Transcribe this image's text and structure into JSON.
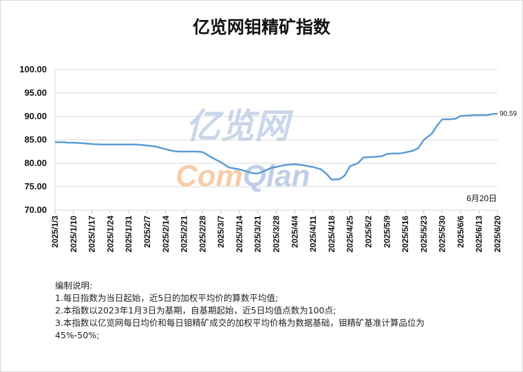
{
  "chart_data": {
    "type": "line",
    "title": "亿览网钼精矿指数",
    "ylim": [
      70,
      100
    ],
    "yticks": [
      "70.00",
      "75.00",
      "80.00",
      "85.00",
      "90.00",
      "95.00",
      "100.00"
    ],
    "x_tick_labels": [
      "2025/1/3",
      "2025/1/10",
      "2025/1/17",
      "2025/1/24",
      "2025/1/31",
      "2025/2/7",
      "2025/2/14",
      "2025/2/21",
      "2025/2/28",
      "2025/3/7",
      "2025/3/14",
      "2025/3/21",
      "2025/3/28",
      "2025/4/4",
      "2025/4/11",
      "2025/4/18",
      "2025/4/25",
      "2025/5/2",
      "2025/5/9",
      "2025/5/16",
      "2025/5/23",
      "2025/5/30",
      "2025/6/6",
      "2025/6/13",
      "2025/6/20"
    ],
    "series": [
      {
        "color": "#5b9bd5",
        "x": [
          "2025/1/3",
          "2025/1/6",
          "2025/1/8",
          "2025/1/10",
          "2025/1/13",
          "2025/1/15",
          "2025/1/17",
          "2025/1/20",
          "2025/1/22",
          "2025/1/24",
          "2025/1/27",
          "2025/1/31",
          "2025/2/3",
          "2025/2/5",
          "2025/2/7",
          "2025/2/10",
          "2025/2/12",
          "2025/2/14",
          "2025/2/17",
          "2025/2/19",
          "2025/2/21",
          "2025/2/24",
          "2025/2/26",
          "2025/2/28",
          "2025/3/3",
          "2025/3/5",
          "2025/3/7",
          "2025/3/10",
          "2025/3/12",
          "2025/3/14",
          "2025/3/17",
          "2025/3/19",
          "2025/3/21",
          "2025/3/24",
          "2025/3/26",
          "2025/3/28",
          "2025/3/31",
          "2025/4/2",
          "2025/4/4",
          "2025/4/7",
          "2025/4/9",
          "2025/4/11",
          "2025/4/14",
          "2025/4/16",
          "2025/4/18",
          "2025/4/21",
          "2025/4/23",
          "2025/4/25",
          "2025/4/28",
          "2025/4/30",
          "2025/5/2",
          "2025/5/5",
          "2025/5/7",
          "2025/5/9",
          "2025/5/12",
          "2025/5/14",
          "2025/5/16",
          "2025/5/19",
          "2025/5/21",
          "2025/5/23",
          "2025/5/26",
          "2025/5/28",
          "2025/5/30",
          "2025/6/2",
          "2025/6/4",
          "2025/6/6",
          "2025/6/9",
          "2025/6/11",
          "2025/6/13",
          "2025/6/16",
          "2025/6/18",
          "2025/6/20"
        ],
        "values": [
          84.5,
          84.5,
          84.4,
          84.4,
          84.3,
          84.2,
          84.1,
          84.0,
          84.0,
          84.0,
          84.0,
          84.0,
          84.0,
          83.9,
          83.8,
          83.6,
          83.3,
          83.0,
          82.6,
          82.5,
          82.5,
          82.5,
          82.5,
          82.4,
          81.4,
          80.8,
          80.2,
          79.1,
          78.9,
          78.7,
          78.2,
          77.9,
          77.8,
          78.5,
          79.0,
          79.2,
          79.6,
          79.7,
          79.8,
          79.6,
          79.4,
          79.2,
          78.7,
          77.8,
          76.5,
          76.6,
          77.4,
          79.4,
          80.0,
          81.2,
          81.3,
          81.4,
          81.5,
          82.0,
          82.1,
          82.1,
          82.3,
          82.7,
          83.3,
          85.0,
          86.3,
          88.0,
          89.4,
          89.4,
          89.5,
          90.1,
          90.2,
          90.3,
          90.3,
          90.3,
          90.5,
          90.59
        ]
      }
    ],
    "last_value_label": "90.59",
    "date_annotation": "6月20日",
    "watermark": {
      "cn": "亿览网",
      "en": "ComQlan"
    }
  },
  "notes": [
    "编制说明:",
    "1.每日指数为当日起始，近5日的加权平均价的算数平均值;",
    "2.本指数以2023年1月3日为基期，自基期起始，近5日均值点数为100点;",
    "3.本指数以亿览网每日均价和每日钼精矿成交的加权平均价格为数据基础，钼精矿基准计算品位为45%-50%;"
  ]
}
